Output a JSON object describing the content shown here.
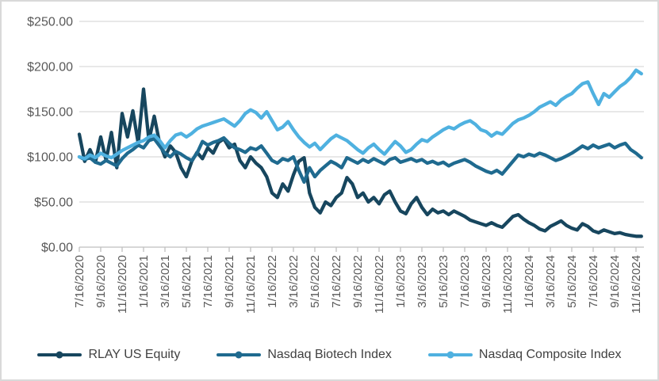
{
  "chart_data": {
    "type": "line",
    "title": "",
    "grid": true,
    "legend_position": "bottom",
    "y_axis": {
      "min": 0,
      "max": 250,
      "ticks": [
        {
          "value": 0,
          "label": "$0.00"
        },
        {
          "value": 50,
          "label": "$50.00"
        },
        {
          "value": 100,
          "label": "$100.00"
        },
        {
          "value": 150,
          "label": "$150.00"
        },
        {
          "value": 200,
          "label": "$200.00"
        },
        {
          "value": 250,
          "label": "$250.00"
        }
      ]
    },
    "x_axis": {
      "tick_labels": [
        "7/16/2020",
        "9/16/2020",
        "11/16/2020",
        "1/16/2021",
        "3/16/2021",
        "5/16/2021",
        "7/16/2021",
        "9/16/2021",
        "11/16/2021",
        "1/16/2022",
        "3/16/2022",
        "5/16/2022",
        "7/16/2022",
        "9/16/2022",
        "11/16/2022",
        "1/16/2023",
        "3/16/2023",
        "5/16/2023",
        "7/16/2023",
        "9/16/2023",
        "11/16/2023",
        "1/16/2024",
        "3/16/2024",
        "5/16/2024",
        "7/16/2024",
        "9/16/2024",
        "11/16/2024"
      ],
      "months_per_tick": 2,
      "start_date": "7/16/2020"
    },
    "x_interval_months": 0.5,
    "series": [
      {
        "name": "RLAY US Equity",
        "color": "#17465e",
        "values": [
          125,
          95,
          108,
          94,
          122,
          96,
          127,
          88,
          148,
          122,
          151,
          115,
          175,
          118,
          145,
          115,
          100,
          112,
          105,
          88,
          78,
          95,
          105,
          98,
          110,
          104,
          116,
          120,
          110,
          114,
          96,
          88,
          100,
          93,
          88,
          78,
          60,
          55,
          70,
          62,
          80,
          95,
          99,
          60,
          44,
          38,
          50,
          46,
          55,
          60,
          77,
          70,
          55,
          60,
          50,
          55,
          48,
          58,
          62,
          50,
          40,
          37,
          48,
          55,
          44,
          36,
          42,
          38,
          40,
          36,
          40,
          37,
          34,
          30,
          28,
          26,
          24,
          27,
          24,
          22,
          28,
          34,
          36,
          31,
          27,
          24,
          20,
          18,
          23,
          26,
          29,
          24,
          21,
          19,
          26,
          23,
          18,
          16,
          19,
          17,
          15,
          16,
          14,
          13,
          12,
          12
        ]
      },
      {
        "name": "Nasdaq Biotech Index",
        "color": "#1f6a8f",
        "values": [
          100,
          97,
          99,
          94,
          92,
          96,
          93,
          90,
          98,
          104,
          108,
          113,
          110,
          118,
          120,
          112,
          104,
          100,
          106,
          103,
          99,
          96,
          104,
          117,
          113,
          116,
          118,
          121,
          115,
          110,
          108,
          105,
          110,
          108,
          112,
          104,
          96,
          93,
          98,
          96,
          100,
          85,
          72,
          88,
          78,
          85,
          90,
          95,
          92,
          88,
          99,
          96,
          93,
          97,
          94,
          98,
          95,
          92,
          97,
          99,
          94,
          96,
          98,
          95,
          97,
          93,
          95,
          92,
          94,
          90,
          93,
          95,
          97,
          94,
          90,
          87,
          84,
          82,
          85,
          81,
          88,
          95,
          102,
          100,
          103,
          101,
          104,
          102,
          99,
          96,
          98,
          101,
          104,
          108,
          112,
          109,
          113,
          110,
          112,
          114,
          110,
          113,
          115,
          108,
          104,
          99
        ]
      },
      {
        "name": "Nasdaq Composite Index",
        "color": "#4fb1e0",
        "values": [
          100,
          98,
          102,
          99,
          104,
          101,
          99,
          103,
          107,
          110,
          113,
          116,
          118,
          122,
          124,
          118,
          110,
          118,
          124,
          126,
          122,
          126,
          131,
          134,
          136,
          138,
          140,
          142,
          138,
          134,
          140,
          148,
          152,
          149,
          143,
          150,
          140,
          130,
          133,
          139,
          130,
          122,
          116,
          111,
          115,
          108,
          114,
          120,
          124,
          121,
          118,
          113,
          108,
          104,
          110,
          114,
          108,
          103,
          110,
          117,
          112,
          105,
          108,
          114,
          119,
          117,
          122,
          126,
          130,
          133,
          131,
          135,
          138,
          140,
          136,
          130,
          128,
          123,
          127,
          125,
          131,
          137,
          141,
          143,
          146,
          150,
          155,
          158,
          161,
          157,
          163,
          167,
          170,
          176,
          181,
          183,
          170,
          158,
          170,
          166,
          172,
          178,
          182,
          188,
          196,
          192
        ]
      }
    ]
  },
  "colors": {
    "background": "#ffffff",
    "frame_border": "#d9d9d9",
    "gridline": "#d9d9d9",
    "axis_line": "#bfbfbf",
    "axis_label": "#595959",
    "legend_text": "#404040"
  }
}
